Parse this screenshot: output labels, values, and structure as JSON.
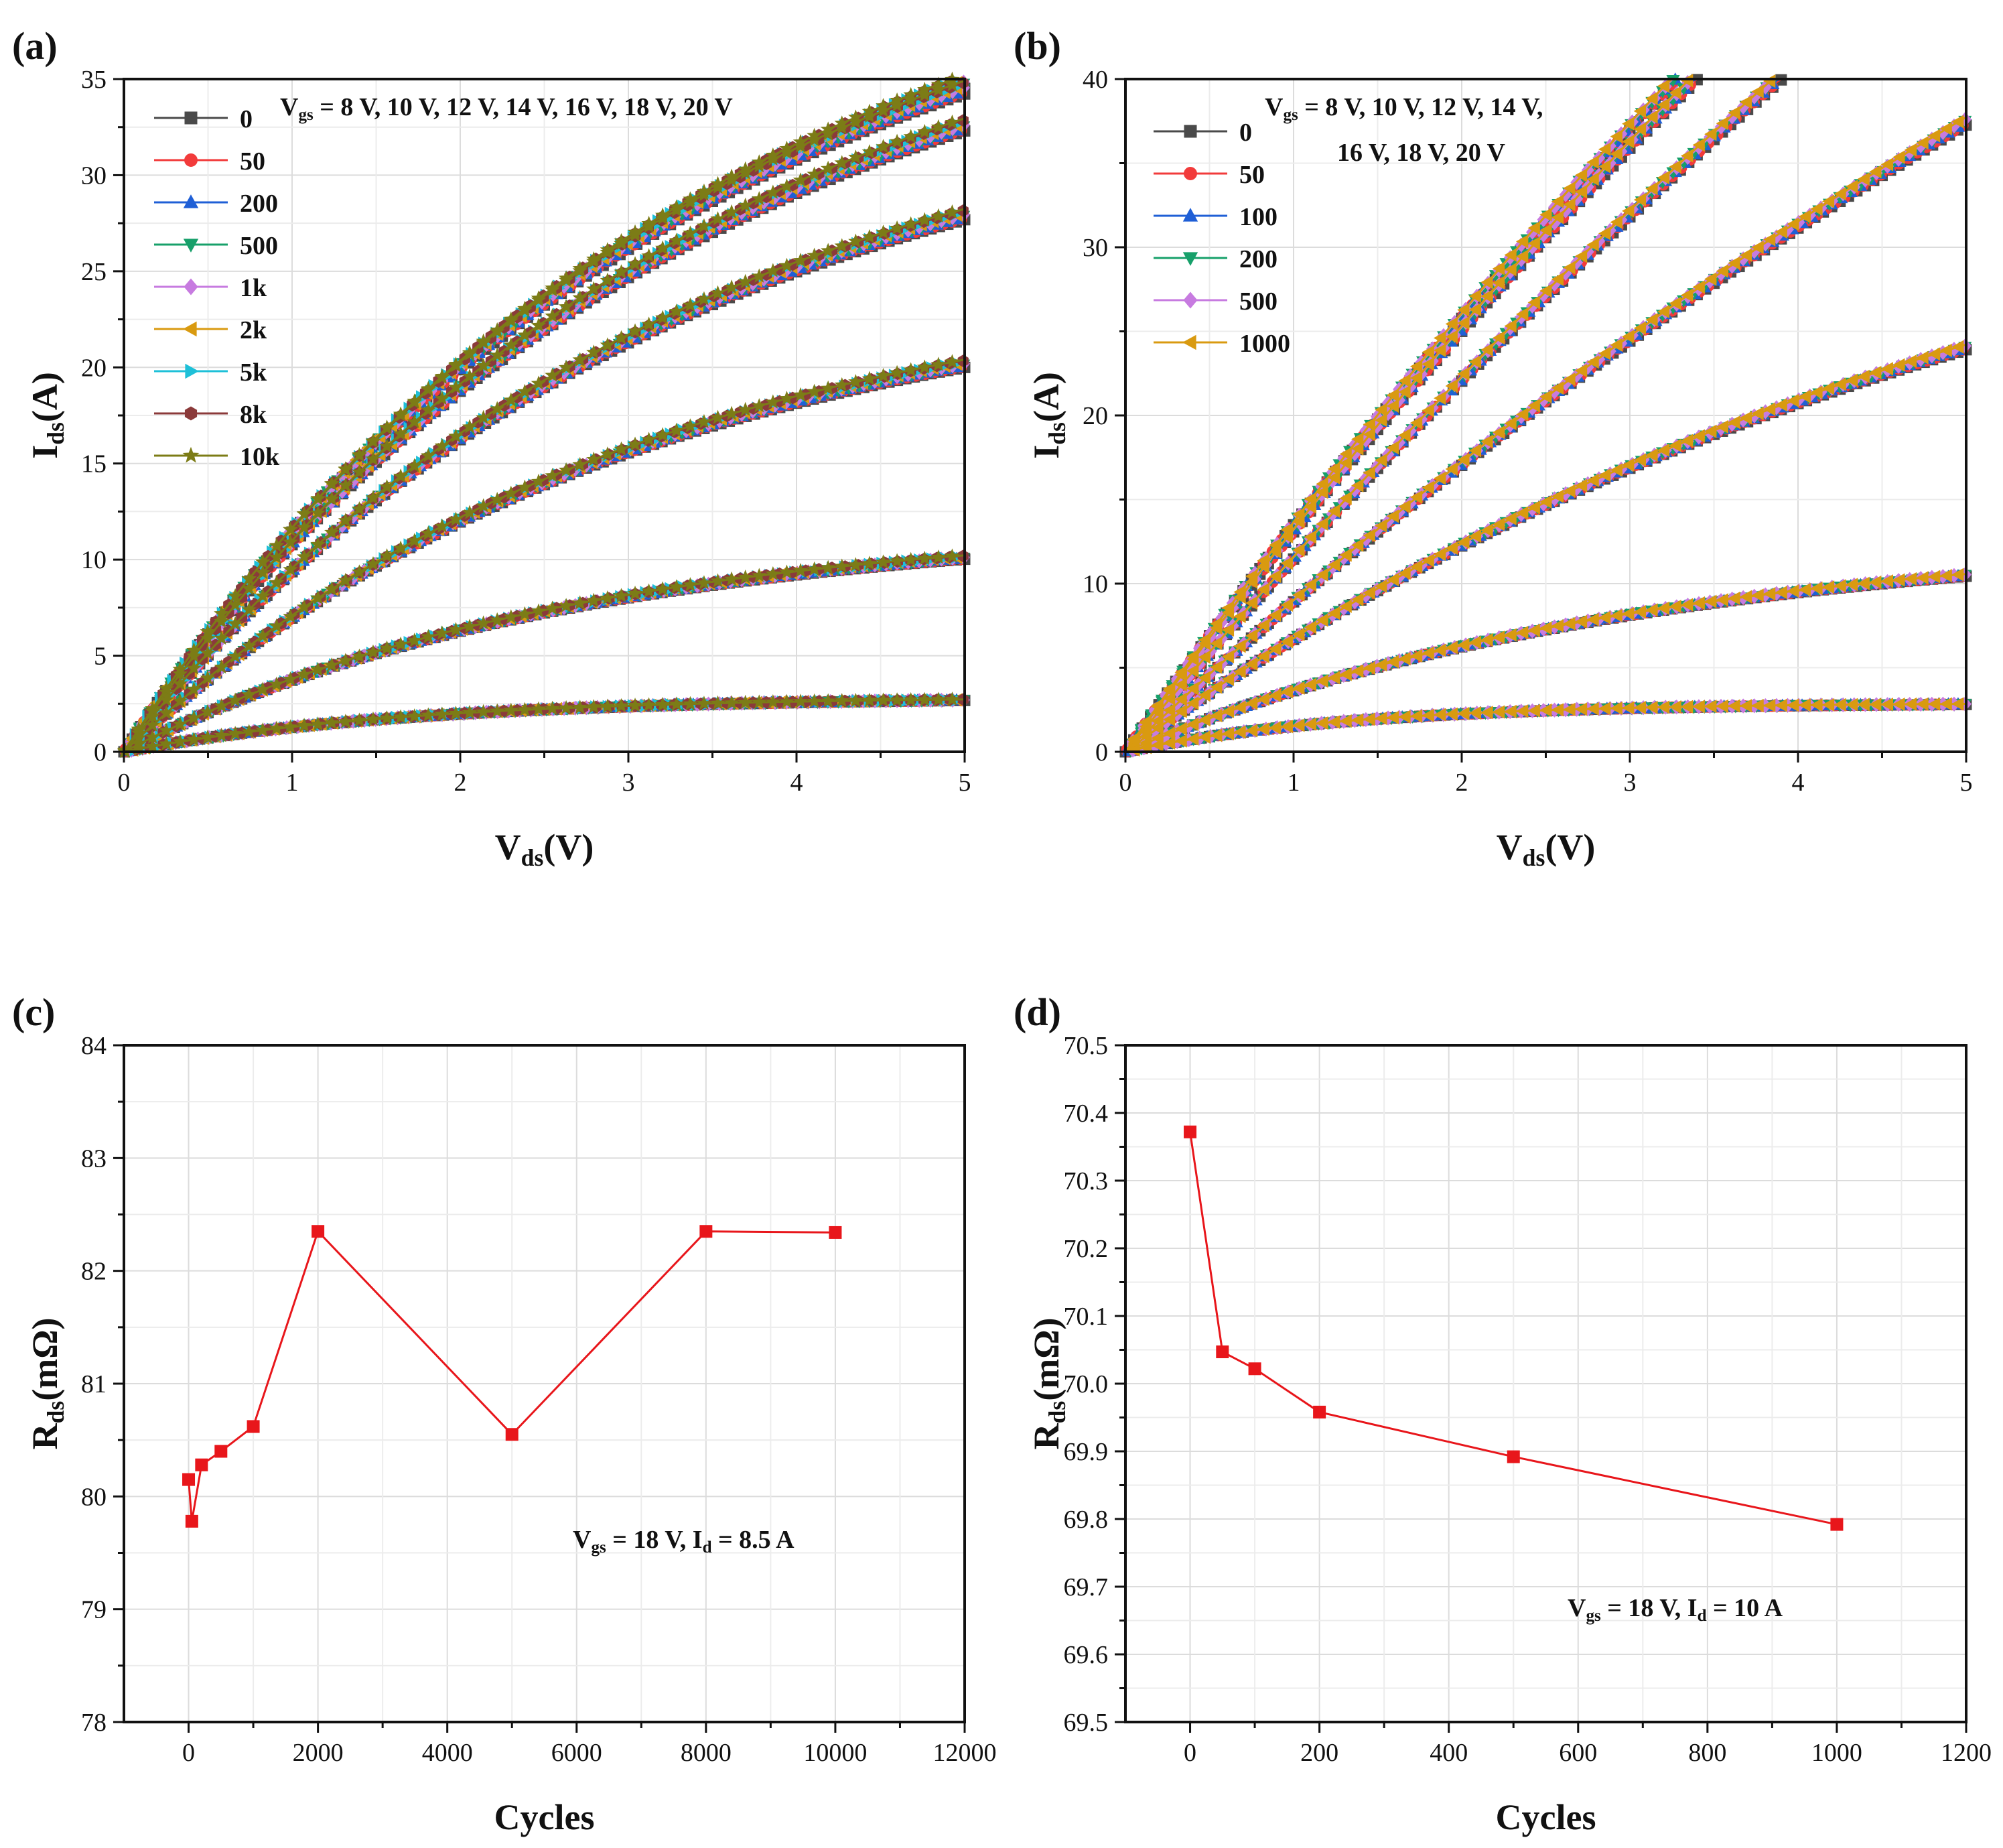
{
  "chart_data": [
    {
      "id": "a",
      "panel_label": "(a)",
      "type": "line",
      "title": "",
      "xlabel": {
        "main": "V",
        "sub": "ds",
        "rest": "(V)"
      },
      "ylabel": {
        "main": "I",
        "sub": "ds",
        "rest": "(A)"
      },
      "xlim": [
        0,
        5
      ],
      "ylim": [
        0,
        35
      ],
      "xticks": [
        0,
        1,
        2,
        3,
        4,
        5
      ],
      "yticks": [
        0,
        5,
        10,
        15,
        20,
        25,
        30,
        35
      ],
      "grid": true,
      "legend_position": "top-left",
      "annotation": {
        "main": "V",
        "sub": "gs",
        "rest": " = 8 V, 10 V, 12 V, 14 V, 16 V, 18 V, 20 V"
      },
      "vgs_levels_V": [
        8,
        10,
        12,
        14,
        16,
        18,
        20
      ],
      "curve_model": "I = a*(1 - exp(-b*Vds))",
      "curves": [
        {
          "vgs": 8,
          "a": 2.84,
          "b": 0.6
        },
        {
          "vgs": 10,
          "a": 11.9,
          "b": 0.38
        },
        {
          "vgs": 12,
          "a": 25.0,
          "b": 0.33
        },
        {
          "vgs": 14,
          "a": 35.5,
          "b": 0.31
        },
        {
          "vgs": 16,
          "a": 42.0,
          "b": 0.3
        },
        {
          "vgs": 18,
          "a": 44.5,
          "b": 0.3
        },
        {
          "vgs": 20,
          "a": 45.2,
          "b": 0.295
        }
      ],
      "series": [
        {
          "name": "0",
          "color": "#4a4a4a",
          "marker": "square"
        },
        {
          "name": "50",
          "color": "#f23b3b",
          "marker": "circle"
        },
        {
          "name": "200",
          "color": "#1f5fd6",
          "marker": "triangle-up"
        },
        {
          "name": "500",
          "color": "#17a06a",
          "marker": "triangle-down"
        },
        {
          "name": "1k",
          "color": "#c77be0",
          "marker": "diamond"
        },
        {
          "name": "2k",
          "color": "#d99a10",
          "marker": "triangle-left"
        },
        {
          "name": "5k",
          "color": "#1ec0d8",
          "marker": "triangle-right"
        },
        {
          "name": "8k",
          "color": "#8b3a3a",
          "marker": "hexagon"
        },
        {
          "name": "10k",
          "color": "#7c7c16",
          "marker": "star"
        }
      ]
    },
    {
      "id": "b",
      "panel_label": "(b)",
      "type": "line",
      "title": "",
      "xlabel": {
        "main": "V",
        "sub": "ds",
        "rest": "(V)"
      },
      "ylabel": {
        "main": "I",
        "sub": "ds",
        "rest": "(A)"
      },
      "xlim": [
        0,
        5
      ],
      "ylim": [
        0,
        40
      ],
      "xticks": [
        0,
        1,
        2,
        3,
        4,
        5
      ],
      "yticks": [
        0,
        10,
        20,
        30,
        40
      ],
      "grid": true,
      "legend_position": "top-left",
      "annotation": {
        "main": "V",
        "sub": "gs",
        "rest": " = 8 V, 10 V, 12 V, 14 V,",
        "line2": "16 V, 18 V, 20 V"
      },
      "vgs_levels_V": [
        8,
        10,
        12,
        14,
        16,
        18,
        20
      ],
      "curve_model": "I = a*(1 - exp(-b*Vds)), clipped at 40 A",
      "curves": [
        {
          "vgs": 8,
          "a": 2.9,
          "b": 0.75
        },
        {
          "vgs": 10,
          "a": 13.0,
          "b": 0.33
        },
        {
          "vgs": 12,
          "a": 40.0,
          "b": 0.184
        },
        {
          "vgs": 14,
          "a": 100.0,
          "b": 0.094
        },
        {
          "vgs": 16,
          "a": 150.0,
          "b": 0.08
        },
        {
          "vgs": 18,
          "a": 150.0,
          "b": 0.0918
        },
        {
          "vgs": 20,
          "a": 150.0,
          "b": 0.0949
        }
      ],
      "series": [
        {
          "name": "0",
          "color": "#4a4a4a",
          "marker": "square"
        },
        {
          "name": "50",
          "color": "#f23b3b",
          "marker": "circle"
        },
        {
          "name": "100",
          "color": "#1f5fd6",
          "marker": "triangle-up"
        },
        {
          "name": "200",
          "color": "#17a06a",
          "marker": "triangle-down"
        },
        {
          "name": "500",
          "color": "#c77be0",
          "marker": "diamond"
        },
        {
          "name": "1000",
          "color": "#d99a10",
          "marker": "triangle-left"
        }
      ]
    },
    {
      "id": "c",
      "panel_label": "(c)",
      "type": "line",
      "title": "",
      "xlabel": {
        "main": "Cycles",
        "sub": "",
        "rest": ""
      },
      "ylabel": {
        "main": "R",
        "sub": "ds",
        "rest": "(mΩ)"
      },
      "xlim": [
        -1000,
        12000
      ],
      "ylim": [
        78,
        84
      ],
      "xticks": [
        0,
        2000,
        4000,
        6000,
        8000,
        10000,
        12000
      ],
      "yticks": [
        78,
        79,
        80,
        81,
        82,
        83,
        84
      ],
      "grid": true,
      "annotation": {
        "main": "V",
        "sub": "gs",
        "rest": " = 18 V, I",
        "sub2": "d",
        "rest2": " = 8.5 A"
      },
      "series": [
        {
          "name": "Rds",
          "color": "#e8161b",
          "marker": "square",
          "x": [
            0,
            50,
            200,
            500,
            1000,
            2000,
            5000,
            8000,
            10000
          ],
          "y": [
            80.15,
            79.78,
            80.28,
            80.4,
            80.62,
            82.35,
            80.55,
            82.35,
            82.34
          ]
        }
      ]
    },
    {
      "id": "d",
      "panel_label": "(d)",
      "type": "line",
      "title": "",
      "xlabel": {
        "main": "Cycles",
        "sub": "",
        "rest": ""
      },
      "ylabel": {
        "main": "R",
        "sub": "ds",
        "rest": "(mΩ)"
      },
      "xlim": [
        -100,
        1200
      ],
      "ylim": [
        69.5,
        70.5
      ],
      "xticks": [
        0,
        200,
        400,
        600,
        800,
        1000,
        1200
      ],
      "yticks": [
        69.5,
        69.6,
        69.7,
        69.8,
        69.9,
        70.0,
        70.1,
        70.2,
        70.3,
        70.4,
        70.5
      ],
      "ytick_decimals": 1,
      "grid": true,
      "annotation": {
        "main": "V",
        "sub": "gs",
        "rest": " = 18 V, I",
        "sub2": "d",
        "rest2": " = 10 A"
      },
      "series": [
        {
          "name": "Rds",
          "color": "#e8161b",
          "marker": "square",
          "x": [
            0,
            50,
            100,
            200,
            500,
            1000
          ],
          "y": [
            70.372,
            70.047,
            70.022,
            69.958,
            69.892,
            69.792
          ]
        }
      ]
    }
  ]
}
